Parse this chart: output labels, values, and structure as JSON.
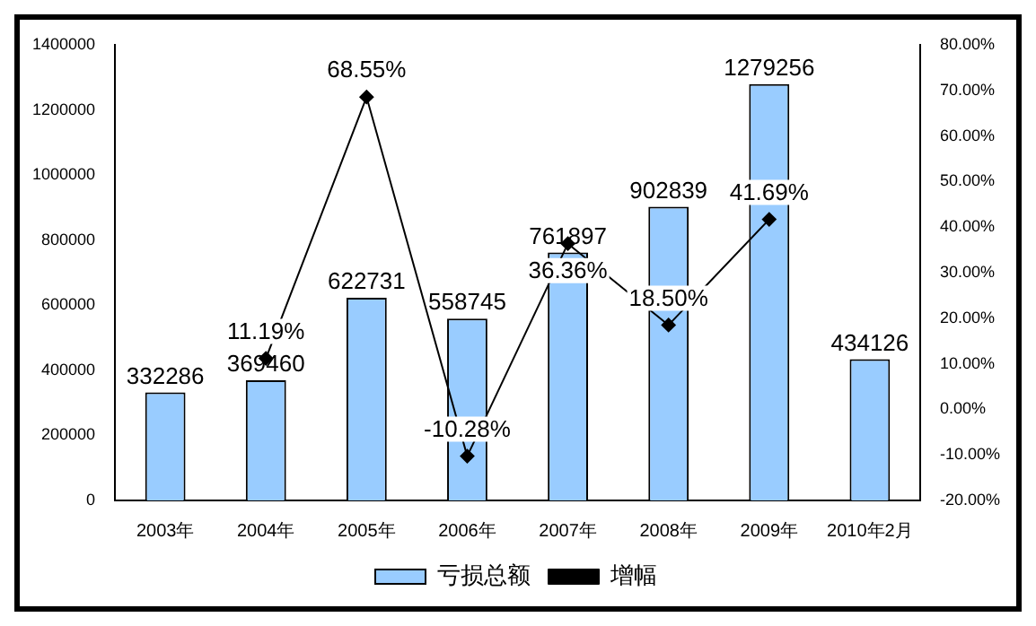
{
  "chart_data": {
    "type": "bar",
    "categories": [
      "2003年",
      "2004年",
      "2005年",
      "2006年",
      "2007年",
      "2008年",
      "2009年",
      "2010年2月"
    ],
    "series": [
      {
        "name": "亏损总额",
        "color": "#99ccff",
        "values": [
          332286,
          369460,
          622731,
          558745,
          761897,
          902839,
          1279256,
          434126
        ]
      },
      {
        "name": "增幅",
        "type": "line",
        "axis": "y2",
        "color": "#000000",
        "values": [
          null,
          11.19,
          68.55,
          -10.28,
          36.36,
          18.5,
          41.69,
          null
        ],
        "value_labels": [
          null,
          "11.19%",
          "68.55%",
          "-10.28%",
          "36.36%",
          "18.50%",
          "41.69%",
          null
        ]
      }
    ],
    "ylim": [
      0,
      1400000
    ],
    "yticks": [
      0,
      200000,
      400000,
      600000,
      800000,
      1000000,
      1200000,
      1400000
    ],
    "y2lim": [
      -20,
      80
    ],
    "y2ticks": [
      {
        "value": -20,
        "label": "-20.00%"
      },
      {
        "value": -10,
        "label": "-10.00%"
      },
      {
        "value": 0,
        "label": "0.00%"
      },
      {
        "value": 10,
        "label": "10.00%"
      },
      {
        "value": 20,
        "label": "20.00%"
      },
      {
        "value": 30,
        "label": "30.00%"
      },
      {
        "value": 40,
        "label": "40.00%"
      },
      {
        "value": 50,
        "label": "50.00%"
      },
      {
        "value": 60,
        "label": "60.00%"
      },
      {
        "value": 70,
        "label": "70.00%"
      },
      {
        "value": 80,
        "label": "80.00%"
      }
    ],
    "data_labels": true,
    "legend": "bottom",
    "marker": "diamond",
    "grid": false
  }
}
